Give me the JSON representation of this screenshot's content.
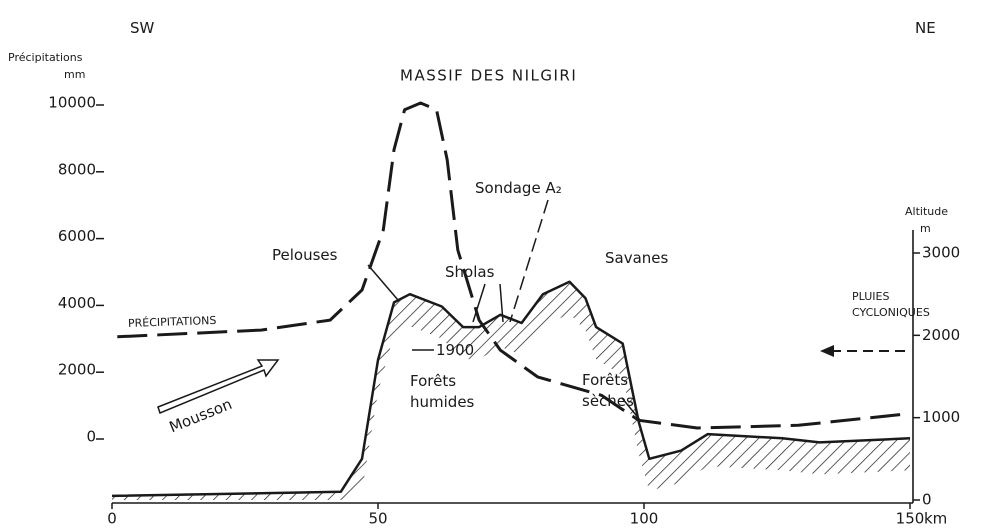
{
  "chart_data": {
    "type": "line",
    "title": "MASSIF DES NILGIRI",
    "y_label": "Précipitations",
    "y_unit": "mm",
    "y2_label": "Altitude",
    "y2_unit": "m",
    "x_unit": "km",
    "xlim": [
      0,
      150
    ],
    "xticks": [
      0,
      50,
      100,
      150
    ],
    "ylim": [
      0,
      10000
    ],
    "yticks": [
      0,
      2000,
      4000,
      6000,
      8000,
      10000
    ],
    "y2lim": [
      0,
      3000
    ],
    "y2ticks": [
      0,
      1000,
      2000,
      3000
    ],
    "series": [
      {
        "name": "PRÉCIPITATIONS",
        "color": "#1a1a1a",
        "dashed": true,
        "x": [
          1,
          28,
          41,
          47,
          51,
          53,
          55,
          58,
          61,
          63,
          65,
          69,
          73,
          80,
          92,
          99,
          110,
          129,
          150
        ],
        "values": [
          3000,
          3200,
          3500,
          4400,
          6200,
          8600,
          9800,
          10000,
          9800,
          8300,
          5600,
          3500,
          2600,
          1800,
          1250,
          500,
          270,
          350,
          700
        ]
      },
      {
        "color": "#1a1a1a",
        "axis": "y2",
        "x": [
          0,
          43,
          47,
          50,
          53,
          56,
          62,
          66,
          69,
          73,
          77,
          81,
          86,
          89,
          91,
          96,
          99,
          101,
          107,
          112,
          126,
          133,
          150
        ],
        "values": [
          50,
          100,
          500,
          1700,
          2400,
          2500,
          2350,
          2100,
          2100,
          2250,
          2150,
          2500,
          2650,
          2450,
          2100,
          1900,
          950,
          500,
          600,
          800,
          750,
          700,
          750
        ]
      }
    ],
    "annotations": [
      [
        "SW"
      ],
      [
        "NE"
      ],
      [
        "Sondage A₂"
      ],
      [
        "Pelouses"
      ],
      [
        "Sholas"
      ],
      [
        "Savanes"
      ],
      [
        "PLUIES",
        "CYCLONIQUES"
      ],
      [
        "1900"
      ],
      [
        "Forêts",
        "humides"
      ],
      [
        "Forêts",
        "sèches"
      ],
      [
        "Mousson"
      ]
    ]
  }
}
